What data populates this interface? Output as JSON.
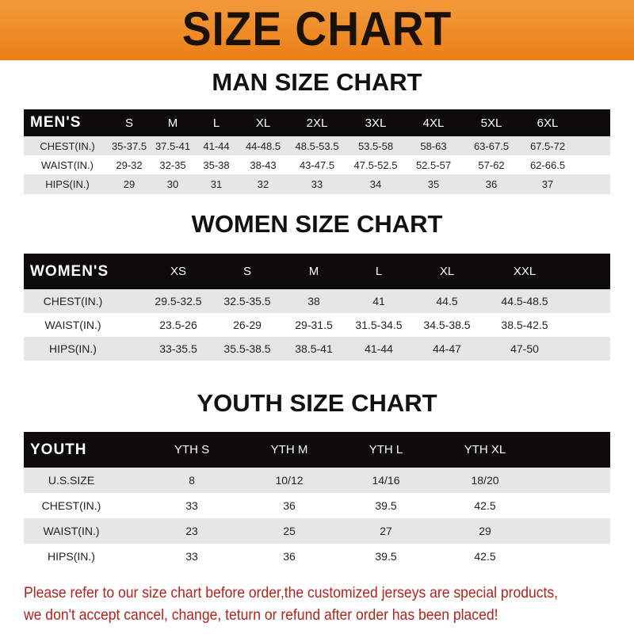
{
  "banner": {
    "title": "SIZE CHART",
    "color": "#ee8420"
  },
  "sections": [
    {
      "title": "MAN SIZE CHART",
      "header_label": "MEN'S",
      "columns": [
        "S",
        "M",
        "L",
        "XL",
        "2XL",
        "3XL",
        "4XL",
        "5XL",
        "6XL"
      ],
      "rows": [
        {
          "label": "CHEST(IN.)",
          "values": [
            "35-37.5",
            "37.5-41",
            "41-44",
            "44-48.5",
            "48.5-53.5",
            "53.5-58",
            "58-63",
            "63-67.5",
            "67.5-72"
          ]
        },
        {
          "label": "WAIST(IN.)",
          "values": [
            "29-32",
            "32-35",
            "35-38",
            "38-43",
            "43-47.5",
            "47.5-52.5",
            "52.5-57",
            "57-62",
            "62-66.5"
          ]
        },
        {
          "label": "HIPS(IN.)",
          "values": [
            "29",
            "30",
            "31",
            "32",
            "33",
            "34",
            "35",
            "36",
            "37"
          ]
        }
      ]
    },
    {
      "title": "WOMEN SIZE CHART",
      "header_label": "WOMEN'S",
      "columns": [
        "XS",
        "S",
        "M",
        "L",
        "XL",
        "XXL"
      ],
      "rows": [
        {
          "label": "CHEST(IN.)",
          "values": [
            "29.5-32.5",
            "32.5-35.5",
            "38",
            "41",
            "44.5",
            "44.5-48.5"
          ]
        },
        {
          "label": "WAIST(IN.)",
          "values": [
            "23.5-26",
            "26-29",
            "29-31.5",
            "31.5-34.5",
            "34.5-38.5",
            "38.5-42.5"
          ]
        },
        {
          "label": "HIPS(IN.)",
          "values": [
            "33-35.5",
            "35.5-38.5",
            "38.5-41",
            "41-44",
            "44-47",
            "47-50"
          ]
        }
      ]
    },
    {
      "title": "YOUTH SIZE CHART",
      "header_label": "YOUTH",
      "columns": [
        "YTH S",
        "YTH M",
        "YTH L",
        "YTH XL"
      ],
      "rows": [
        {
          "label": "U.S.SIZE",
          "values": [
            "8",
            "10/12",
            "14/16",
            "18/20"
          ]
        },
        {
          "label": "CHEST(IN.)",
          "values": [
            "33",
            "36",
            "39.5",
            "42.5"
          ]
        },
        {
          "label": "WAIST(IN.)",
          "values": [
            "23",
            "25",
            "27",
            "29"
          ]
        },
        {
          "label": "HIPS(IN.)",
          "values": [
            "33",
            "36",
            "39.5",
            "42.5"
          ]
        }
      ]
    }
  ],
  "footer": {
    "line1": "Please refer to our size chart before order,the customized jerseys are special products,",
    "line2": "we don't accept cancel, change, teturn or refund after order has been placed!",
    "color": "#b3221c"
  }
}
